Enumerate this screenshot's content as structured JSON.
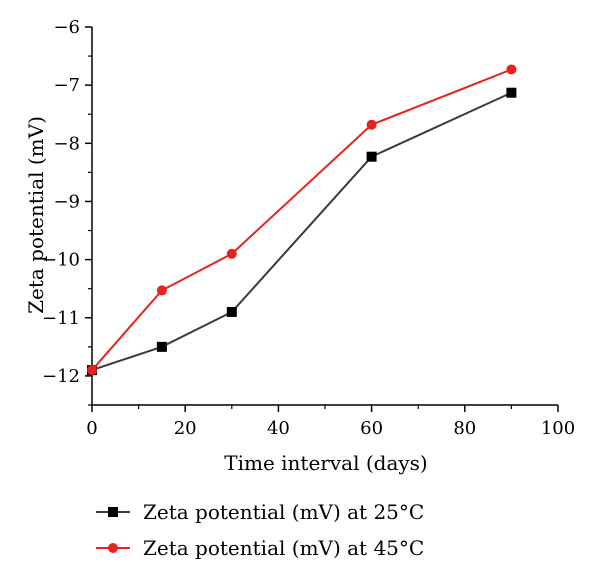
{
  "chart_data": {
    "type": "line",
    "title": "",
    "xlabel": "Time interval (days)",
    "ylabel": "Zeta potential (mV)",
    "xlim": [
      0,
      100
    ],
    "ylim": [
      -12.5,
      -6
    ],
    "xticks": [
      0,
      20,
      40,
      60,
      80,
      100
    ],
    "xtick_labels": [
      "0",
      "20",
      "40",
      "60",
      "80",
      "100"
    ],
    "yticks": [
      -12,
      -11,
      -10,
      -9,
      -8,
      -7,
      -6
    ],
    "ytick_labels": [
      "−12",
      "−11",
      "−10",
      "−9",
      "−8",
      "−7",
      "−6"
    ],
    "grid": false,
    "legend_position": "bottom",
    "x": [
      0,
      15,
      30,
      60,
      90
    ],
    "series": [
      {
        "name": "Zeta potential (mV) at 25°C",
        "values": [
          -11.9,
          -11.5,
          -10.9,
          -8.23,
          -7.13
        ],
        "color": "#3a3a3a",
        "marker": "square",
        "marker_color": "#000000"
      },
      {
        "name": "Zeta potential (mV) at 45°C",
        "values": [
          -11.9,
          -10.53,
          -9.9,
          -7.68,
          -6.73
        ],
        "color": "#e8221e",
        "marker": "circle",
        "marker_color": "#e8221e"
      }
    ]
  }
}
